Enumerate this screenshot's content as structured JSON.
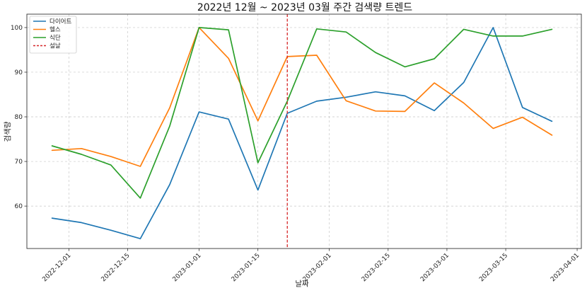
{
  "chart_data": {
    "type": "line",
    "title": "2022년 12월 ~ 2023년 03월 주간 검색량 트렌드",
    "xlabel": "날짜",
    "ylabel": "검색량",
    "xlim": [
      "2022-11-21",
      "2023-04-02"
    ],
    "ylim": [
      50.5,
      103
    ],
    "grid": true,
    "legend_position": "top-left",
    "x": [
      "2022-11-27",
      "2022-12-04",
      "2022-12-11",
      "2022-12-18",
      "2022-12-25",
      "2023-01-01",
      "2023-01-08",
      "2023-01-15",
      "2023-01-22",
      "2023-01-29",
      "2023-02-05",
      "2023-02-12",
      "2023-02-19",
      "2023-02-26",
      "2023-03-05",
      "2023-03-12",
      "2023-03-19",
      "2023-03-26"
    ],
    "x_ticks": [
      "2022-12-01",
      "2022-12-15",
      "2023-01-01",
      "2023-01-15",
      "2023-02-01",
      "2023-02-15",
      "2023-03-01",
      "2023-03-15",
      "2023-04-01"
    ],
    "y_ticks": [
      60,
      70,
      80,
      90,
      100
    ],
    "series": [
      {
        "name": "다이어트",
        "color": "#1f77b4",
        "values": [
          57.3,
          56.3,
          54.6,
          52.7,
          64.8,
          81.1,
          79.5,
          63.6,
          80.8,
          83.5,
          84.4,
          85.6,
          84.7,
          81.4,
          87.7,
          100,
          82.1,
          79.0
        ]
      },
      {
        "name": "헬스",
        "color": "#ff7f0e",
        "values": [
          72.5,
          72.9,
          71.1,
          68.9,
          82.0,
          100,
          93.1,
          79.1,
          93.5,
          93.8,
          83.6,
          81.3,
          81.2,
          87.6,
          83.1,
          77.4,
          79.9,
          75.9
        ]
      },
      {
        "name": "식단",
        "color": "#2ca02c",
        "values": [
          73.5,
          71.6,
          69.2,
          61.8,
          77.9,
          100,
          99.5,
          69.7,
          83.5,
          99.7,
          99.0,
          94.4,
          91.2,
          93.0,
          99.6,
          98.1,
          98.1,
          99.6
        ]
      }
    ],
    "annotations": [
      {
        "type": "vline",
        "x": "2023-01-22",
        "label": "설날",
        "color": "#d62728",
        "style": "dashed"
      }
    ]
  }
}
